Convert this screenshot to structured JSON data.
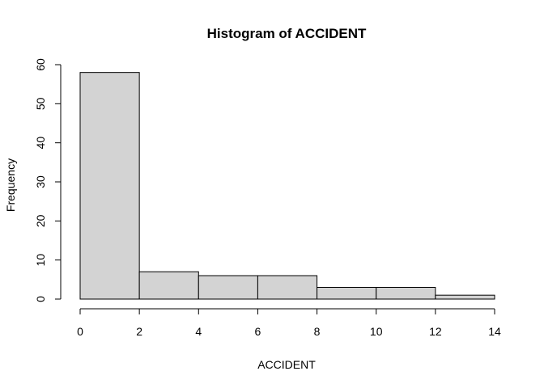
{
  "chart_data": {
    "type": "bar",
    "title": "Histogram of ACCIDENT",
    "xlabel": "ACCIDENT",
    "ylabel": "Frequency",
    "bins": [
      {
        "x0": 0,
        "x1": 2,
        "value": 58
      },
      {
        "x0": 2,
        "x1": 4,
        "value": 7
      },
      {
        "x0": 4,
        "x1": 6,
        "value": 6
      },
      {
        "x0": 6,
        "x1": 8,
        "value": 6
      },
      {
        "x0": 8,
        "x1": 10,
        "value": 3
      },
      {
        "x0": 10,
        "x1": 12,
        "value": 3
      },
      {
        "x0": 12,
        "x1": 14,
        "value": 1
      }
    ],
    "xlim": [
      0,
      14
    ],
    "ylim": [
      0,
      60
    ],
    "xticks": [
      "0",
      "2",
      "4",
      "6",
      "8",
      "10",
      "12",
      "14"
    ],
    "yticks": [
      "0",
      "10",
      "20",
      "30",
      "40",
      "50",
      "60"
    ],
    "bar_fill": "#d3d3d3",
    "bar_stroke": "#000000",
    "grid": false,
    "legend": "none"
  }
}
